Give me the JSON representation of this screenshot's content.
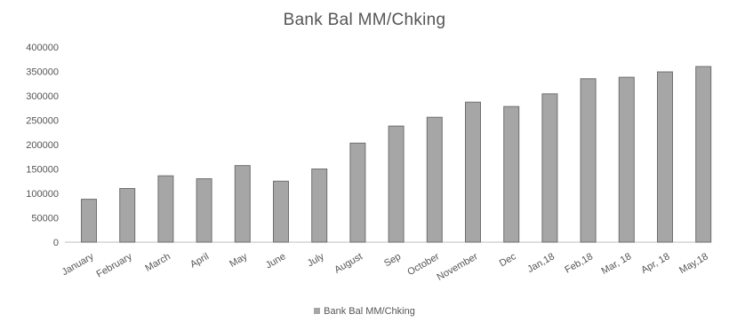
{
  "chart_data": {
    "type": "bar",
    "title": "Bank Bal MM/Chking",
    "xlabel": "",
    "ylabel": "",
    "ylim": [
      0,
      400000
    ],
    "yticks": [
      0,
      50000,
      100000,
      150000,
      200000,
      250000,
      300000,
      350000,
      400000
    ],
    "ytick_labels": [
      "0",
      "50000",
      "100000",
      "150000",
      "200000",
      "250000",
      "300000",
      "350000",
      "400000"
    ],
    "categories": [
      "January",
      "February",
      "March",
      "April",
      "May",
      "June",
      "July",
      "August",
      "Sep",
      "October",
      "November",
      "Dec",
      "Jan,18",
      "Feb,18",
      "Mar, 18",
      "Apr, 18",
      "May,18"
    ],
    "series": [
      {
        "name": "Bank Bal MM/Chking",
        "values": [
          88000,
          110000,
          136000,
          130000,
          157000,
          125000,
          150000,
          203000,
          238000,
          256000,
          287000,
          278000,
          304000,
          335000,
          338000,
          349000,
          360000
        ]
      }
    ],
    "grid": false,
    "legend": "bottom"
  },
  "colors": {
    "bar_fill": "#a6a6a6",
    "bar_stroke": "#707070",
    "axis_line": "#bfbfbf",
    "text": "#555555"
  }
}
